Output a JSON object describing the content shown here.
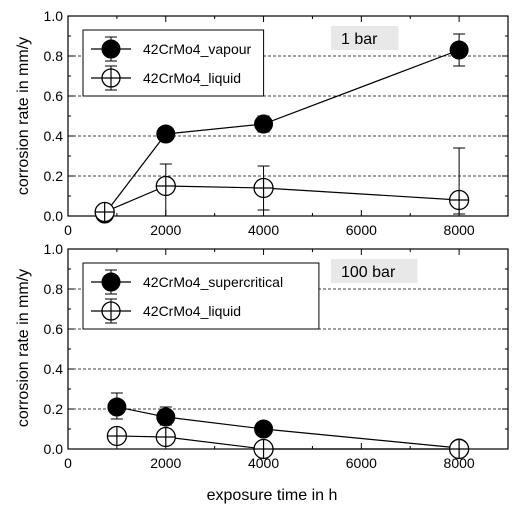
{
  "chart_data": [
    {
      "type": "scatter",
      "annotation": "1 bar",
      "xlabel": "",
      "ylabel": "",
      "xlim": [
        0,
        9000
      ],
      "ylim": [
        0,
        1.0
      ],
      "xticks": [
        0,
        2000,
        4000,
        6000,
        8000
      ],
      "xtick_labels": [
        "0",
        "2000",
        "4000",
        "6000",
        "8000"
      ],
      "yticks": [
        0.0,
        0.2,
        0.4,
        0.6,
        0.8,
        1.0
      ],
      "ytick_labels": [
        "0.0",
        "0.2",
        "0.4",
        "0.6",
        "0.8",
        "1.0"
      ],
      "grid": "horizontal dashed",
      "legend_position": "top-left",
      "series": [
        {
          "name": "42CrMo4_vapour",
          "marker": "filled-circle",
          "connected": true,
          "x": [
            750,
            2000,
            4000,
            8000
          ],
          "y": [
            0.01,
            0.41,
            0.46,
            0.83
          ],
          "err_low": [
            0.01,
            0.03,
            0.04,
            0.08
          ],
          "err_high": [
            0.01,
            0.03,
            0.04,
            0.08
          ]
        },
        {
          "name": "42CrMo4_liquid",
          "marker": "open-circle-cross",
          "connected": true,
          "x": [
            750,
            2000,
            4000,
            8000
          ],
          "y": [
            0.02,
            0.15,
            0.14,
            0.08
          ],
          "err_low": [
            0.01,
            0.15,
            0.11,
            0.07
          ],
          "err_high": [
            0.01,
            0.11,
            0.11,
            0.26
          ]
        }
      ]
    },
    {
      "type": "scatter",
      "annotation": "100 bar",
      "xlabel": "exposure time in h",
      "ylabel": "",
      "xlim": [
        0,
        9000
      ],
      "ylim": [
        0,
        1.0
      ],
      "xticks": [
        0,
        2000,
        4000,
        6000,
        8000
      ],
      "xtick_labels": [
        "0",
        "2000",
        "4000",
        "6000",
        "8000"
      ],
      "yticks": [
        0.0,
        0.2,
        0.4,
        0.6,
        0.8,
        1.0
      ],
      "ytick_labels": [
        "0.0",
        "0.2",
        "0.4",
        "0.6",
        "0.8",
        "1.0"
      ],
      "grid": "horizontal dashed",
      "legend_position": "top-left",
      "series": [
        {
          "name": "42CrMo4_supercritical",
          "marker": "filled-circle",
          "connected": true,
          "x": [
            1000,
            2000,
            4000,
            8000
          ],
          "y": [
            0.21,
            0.16,
            0.1,
            0.005
          ],
          "err_low": [
            0.06,
            0.04,
            0.03,
            0.005
          ],
          "err_high": [
            0.07,
            0.05,
            0.03,
            0.005
          ]
        },
        {
          "name": "42CrMo4_liquid",
          "marker": "open-circle-cross",
          "connected": true,
          "x": [
            1000,
            2000,
            4000,
            8000
          ],
          "y": [
            0.065,
            0.06,
            0.0,
            0.0
          ],
          "err_low": [
            0.03,
            0.03,
            0.0,
            0.0
          ],
          "err_high": [
            0.03,
            0.03,
            0.0,
            0.0
          ]
        }
      ]
    }
  ],
  "shared_ylabel": "corrosion rate in mm/y",
  "colors": {
    "ink": "#000000",
    "background": "#ffffff",
    "annotation_box": "#e8e8e8"
  }
}
